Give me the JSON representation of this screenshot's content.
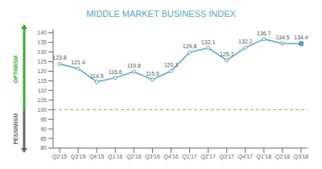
{
  "chart_data": {
    "type": "line",
    "title": "MIDDLE MARKET BUSINESS INDEX",
    "categories": [
      "Q2'15",
      "Q3'15",
      "Q4'15",
      "Q1'16",
      "Q2'16",
      "Q3'16",
      "Q4'16",
      "Q1'17",
      "Q2'17",
      "Q3'17",
      "Q4'17",
      "Q1'18",
      "Q2'18",
      "Q3'18"
    ],
    "values": [
      123.8,
      121.4,
      114.5,
      116.6,
      119.8,
      115.6,
      120.1,
      129.8,
      132.1,
      125.7,
      132.2,
      136.7,
      134.5,
      134.4
    ],
    "color": "#5ba3be",
    "ylim": [
      80,
      142
    ],
    "yticks": [
      80,
      85,
      90,
      95,
      100,
      105,
      110,
      115,
      120,
      125,
      130,
      135,
      140
    ],
    "data_labels": true,
    "grid": false,
    "reference_line": {
      "value": 100,
      "color": "#7ab648",
      "line_style": "dashed"
    },
    "annotations": [
      {
        "text": "OPTIMISM",
        "color": "#3aaa35"
      },
      {
        "text": "PESSIMISM",
        "color": "#666666"
      }
    ]
  }
}
